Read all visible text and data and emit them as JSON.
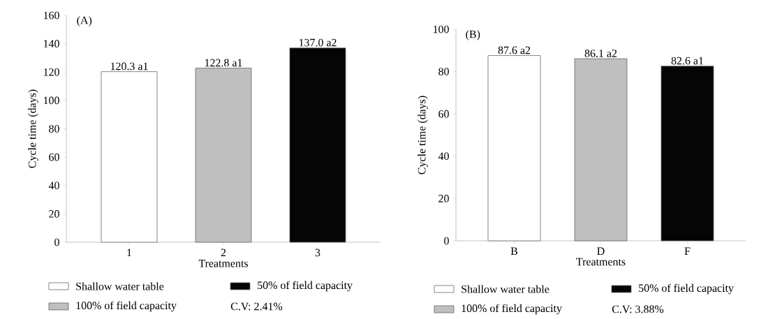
{
  "chart_data": [
    {
      "type": "bar",
      "ylabel": "Cycle time (days)",
      "xlabel": "Treatments",
      "categories": [
        "1",
        "2",
        "3"
      ],
      "series": [
        {
          "name": "Shallow water table",
          "color": "#ffffff",
          "values": [
            120.3,
            null,
            null
          ],
          "value_labels": [
            "120.3 a1",
            null,
            null
          ]
        },
        {
          "name": "100% of field capacity",
          "color": "#bfbfbf",
          "values": [
            null,
            122.8,
            null
          ],
          "value_labels": [
            null,
            "122.8 a1",
            null
          ]
        },
        {
          "name": "50% of field capacity",
          "color": "#050505",
          "values": [
            null,
            null,
            137.0
          ],
          "value_labels": [
            null,
            null,
            "137.0 a2"
          ]
        }
      ],
      "ylim": [
        0,
        160
      ],
      "yticks": [
        0,
        20,
        40,
        60,
        80,
        100,
        120,
        140,
        160
      ],
      "legend": "bottom",
      "annotations": [
        "(A)",
        "C.V: 2.41%"
      ]
    },
    {
      "type": "bar",
      "ylabel": "Cycle time (days)",
      "xlabel": "Treatments",
      "categories": [
        "B",
        "D",
        "F"
      ],
      "series": [
        {
          "name": "Shallow water table",
          "color": "#ffffff",
          "values": [
            87.6,
            null,
            null
          ],
          "value_labels": [
            "87.6 a2",
            null,
            null
          ]
        },
        {
          "name": "100% of field capacity",
          "color": "#bfbfbf",
          "values": [
            null,
            86.1,
            null
          ],
          "value_labels": [
            null,
            "86.1 a2",
            null
          ]
        },
        {
          "name": "50% of field capacity",
          "color": "#050505",
          "values": [
            null,
            null,
            82.6
          ],
          "value_labels": [
            null,
            null,
            "82.6 a1"
          ]
        }
      ],
      "ylim": [
        0,
        100
      ],
      "yticks": [
        0,
        20,
        40,
        60,
        80,
        100
      ],
      "legend": "bottom",
      "annotations": [
        "(B)",
        "C.V: 3.88%"
      ]
    }
  ]
}
